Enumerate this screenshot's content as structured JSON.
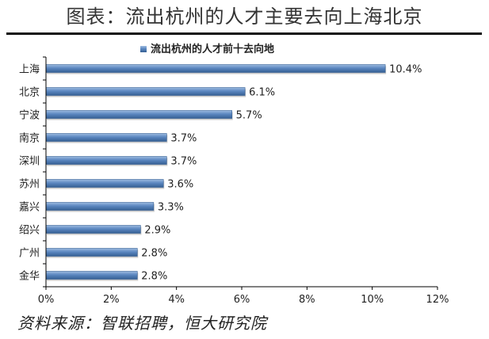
{
  "figure_title": "图表：流出杭州的人才主要去向上海北京",
  "source_note": "资料来源：智联招聘，恒大研究院",
  "chart_data": {
    "type": "bar",
    "orientation": "horizontal",
    "title": "流出杭州的人才前十去向地",
    "legend": "top-center",
    "categories": [
      "上海",
      "北京",
      "宁波",
      "南京",
      "深圳",
      "苏州",
      "嘉兴",
      "绍兴",
      "广州",
      "金华"
    ],
    "series": [
      {
        "name": "流出杭州的人才前十去向地",
        "values": [
          10.4,
          6.1,
          5.7,
          3.7,
          3.7,
          3.6,
          3.3,
          2.9,
          2.8,
          2.8
        ],
        "labels": [
          "10.4%",
          "6.1%",
          "5.7%",
          "3.7%",
          "3.7%",
          "3.6%",
          "3.3%",
          "2.9%",
          "2.8%",
          "2.8%"
        ]
      }
    ],
    "xlim": [
      0,
      12
    ],
    "xticks": [
      0,
      2,
      4,
      6,
      8,
      10,
      12
    ],
    "xtick_labels": [
      "0%",
      "2%",
      "4%",
      "6%",
      "8%",
      "10%",
      "12%"
    ],
    "grid": false,
    "colors": {
      "bar_fill": "#5b87c0",
      "bar_dark": "#355f93",
      "bar_light": "#9ebbe0",
      "axis": "#000000"
    }
  }
}
